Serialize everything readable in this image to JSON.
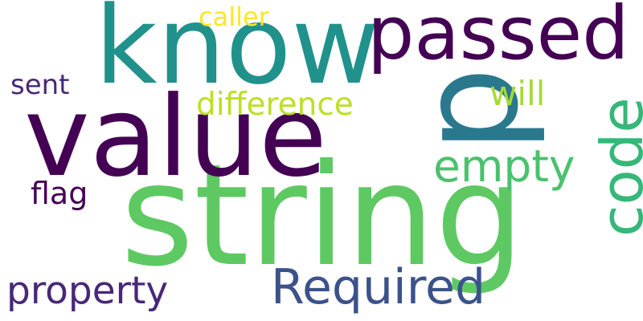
{
  "words": [
    {
      "text": "string",
      "color": "#5ec962"
    },
    {
      "text": "value",
      "color": "#440154"
    },
    {
      "text": "know",
      "color": "#21918c"
    },
    {
      "text": "passed",
      "color": "#440154"
    },
    {
      "text": "p",
      "color": "#2a788e"
    },
    {
      "text": "code",
      "color": "#35b779"
    },
    {
      "text": "Required",
      "color": "#3b528b"
    },
    {
      "text": "empty",
      "color": "#4ac16d"
    },
    {
      "text": "property",
      "color": "#482878"
    },
    {
      "text": "difference",
      "color": "#bddf26"
    },
    {
      "text": "will",
      "color": "#a5db36"
    },
    {
      "text": "flag",
      "color": "#440154"
    },
    {
      "text": "sent",
      "color": "#482878"
    },
    {
      "text": "caller",
      "color": "#fde725"
    }
  ]
}
